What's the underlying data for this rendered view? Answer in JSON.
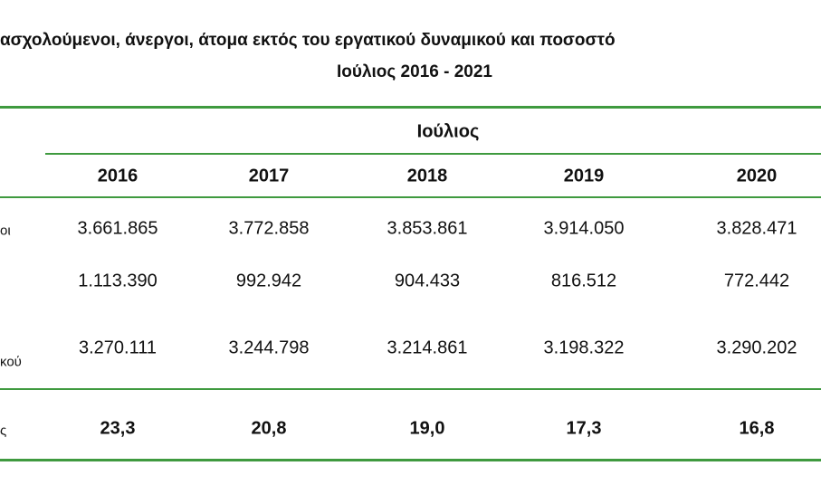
{
  "header": {
    "title": "ασχολούμενοι, άνεργοι, άτομα εκτός του εργατικού δυναμικού και ποσοστό",
    "subtitle": "Ιούλιος 2016 - 2021"
  },
  "table": {
    "group_header": "Ιούλιος",
    "columns": [
      "2016",
      "2017",
      "2018",
      "2019",
      "2020"
    ],
    "rows": [
      {
        "label": "οι",
        "cells": [
          "3.661.865",
          "3.772.858",
          "3.853.861",
          "3.914.050",
          "3.828.471"
        ]
      },
      {
        "cells": [
          "1.113.390",
          "992.942",
          "904.433",
          "816.512",
          "772.442"
        ]
      },
      {
        "label": "κού",
        "cells": [
          "3.270.111",
          "3.244.798",
          "3.214.861",
          "3.198.322",
          "3.290.202"
        ]
      },
      {
        "label": "ς",
        "cells": [
          "23,3",
          "20,8",
          "19,0",
          "17,3",
          "16,8"
        ],
        "bold": true
      }
    ]
  }
}
